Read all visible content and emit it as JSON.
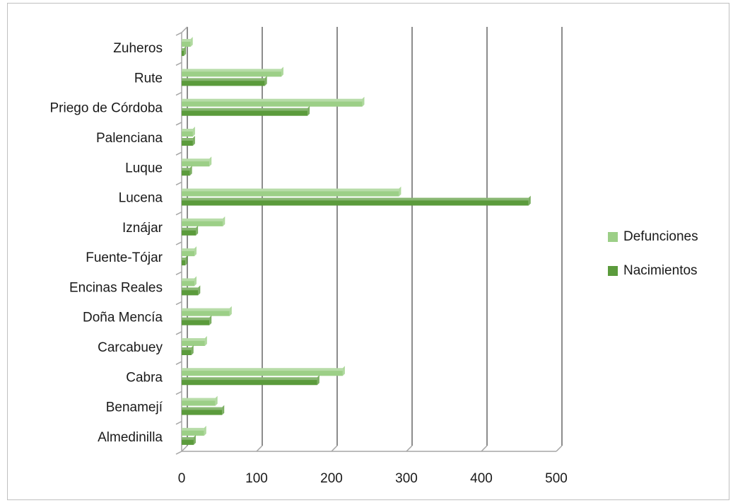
{
  "colors": {
    "defunciones": "#9ccf87",
    "nacimientos": "#5b9b3c",
    "gridline": "#8c8c8c",
    "axis": "#a6a6a6"
  },
  "chart_data": {
    "type": "bar",
    "orientation": "horizontal",
    "categories": [
      "Almedinilla",
      "Benamejí",
      "Cabra",
      "Carcabuey",
      "Doña Mencía",
      "Encinas Reales",
      "Fuente-Tójar",
      "Iznájar",
      "Lucena",
      "Luque",
      "Palenciana",
      "Priego de Córdoba",
      "Rute",
      "Zuheros"
    ],
    "series": [
      {
        "name": "Defunciones",
        "values": [
          30,
          45,
          215,
          31,
          64,
          17,
          17,
          55,
          290,
          37,
          15,
          241,
          133,
          12
        ]
      },
      {
        "name": "Nacimientos",
        "values": [
          16,
          54,
          181,
          13,
          37,
          22,
          5,
          19,
          463,
          11,
          15,
          168,
          111,
          3
        ]
      }
    ],
    "xlim": [
      0,
      500
    ],
    "x_ticks": [
      "0",
      "100",
      "200",
      "300",
      "400",
      "500"
    ],
    "grid": true,
    "legend_position": "right",
    "legend": [
      "Defunciones",
      "Nacimientos"
    ]
  }
}
